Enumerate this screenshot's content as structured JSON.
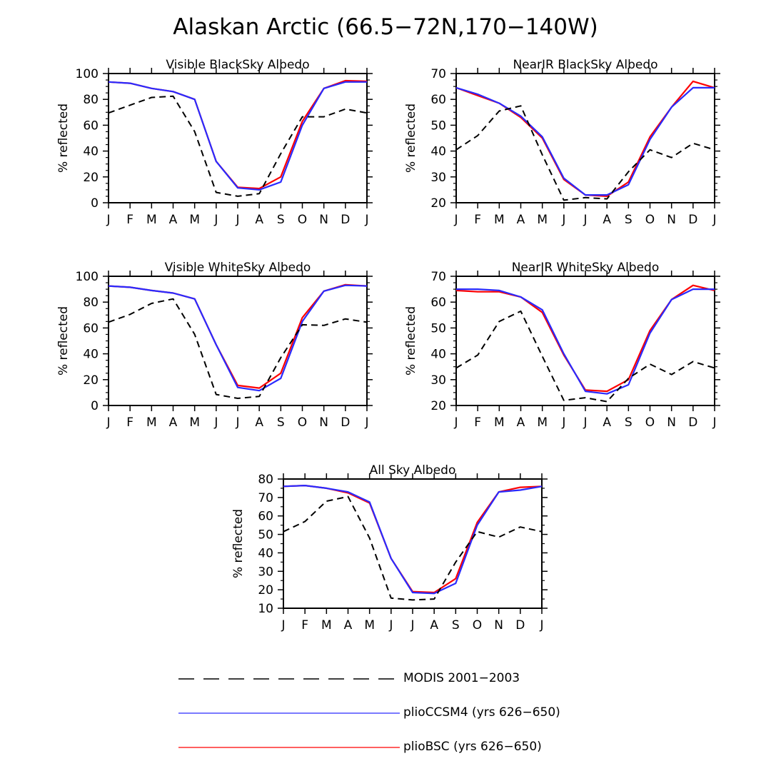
{
  "title": "Alaskan Arctic (66.5−72N,170−140W)",
  "colors": {
    "modis": "#000000",
    "ccsm4": "#2a2aff",
    "bsc": "#ff0000"
  },
  "legend": {
    "modis": "MODIS 2001−2003",
    "ccsm4": "plioCCSM4 (yrs 626−650)",
    "bsc": "plioBSC (yrs 626−650)"
  },
  "chart_data": [
    {
      "type": "line",
      "title": "Visible BlackSky Albedo",
      "ylabel": "% reflected",
      "xlabel": "",
      "categories": [
        "J",
        "F",
        "M",
        "A",
        "M",
        "J",
        "J",
        "A",
        "S",
        "O",
        "N",
        "D",
        "J"
      ],
      "ylim": [
        0,
        100
      ],
      "yticks": [
        0,
        20,
        40,
        60,
        80,
        100
      ],
      "series": [
        {
          "name": "MODIS 2001−2003",
          "key": "modis",
          "values": [
            69.5,
            75.5,
            81.5,
            82.5,
            55,
            8,
            5,
            7,
            38,
            66.5,
            66.5,
            72.5,
            69.5
          ]
        },
        {
          "name": "plioCCSM4 (yrs 626−650)",
          "key": "ccsm4",
          "values": [
            93.5,
            92.5,
            88.5,
            86,
            80,
            32,
            11.5,
            10,
            16,
            60,
            88.5,
            93.5,
            93.5
          ]
        },
        {
          "name": "plioBSC (yrs 626−650)",
          "key": "bsc",
          "values": [
            93.5,
            92.5,
            88.5,
            86,
            80,
            32,
            12,
            11,
            20,
            63,
            88.5,
            94.5,
            94
          ]
        }
      ]
    },
    {
      "type": "line",
      "title": "NearIR BlackSky Albedo",
      "ylabel": "% reflected",
      "xlabel": "",
      "categories": [
        "J",
        "F",
        "M",
        "A",
        "M",
        "J",
        "J",
        "A",
        "S",
        "O",
        "N",
        "D",
        "J"
      ],
      "ylim": [
        20,
        70
      ],
      "yticks": [
        20,
        30,
        40,
        50,
        60,
        70
      ],
      "series": [
        {
          "name": "MODIS 2001−2003",
          "key": "modis",
          "values": [
            40.5,
            46,
            55.5,
            57.5,
            38.5,
            21,
            22,
            21.5,
            32,
            40.5,
            37.5,
            43,
            40.5
          ]
        },
        {
          "name": "plioCCSM4 (yrs 626−650)",
          "key": "ccsm4",
          "values": [
            64.5,
            62,
            58.5,
            53.5,
            45.5,
            29.5,
            23,
            23,
            27,
            44.5,
            57,
            64.5,
            64.5
          ]
        },
        {
          "name": "plioBSC (yrs 626−650)",
          "key": "bsc",
          "values": [
            64.5,
            61.5,
            58.5,
            53,
            45,
            29,
            23,
            22.5,
            28,
            45.5,
            57,
            67,
            64.5
          ]
        }
      ]
    },
    {
      "type": "line",
      "title": "Visible WhiteSky Albedo",
      "ylabel": "% reflected",
      "xlabel": "",
      "categories": [
        "J",
        "F",
        "M",
        "A",
        "M",
        "J",
        "J",
        "A",
        "S",
        "O",
        "N",
        "D",
        "J"
      ],
      "ylim": [
        0,
        100
      ],
      "yticks": [
        0,
        20,
        40,
        60,
        80,
        100
      ],
      "series": [
        {
          "name": "MODIS 2001−2003",
          "key": "modis",
          "values": [
            64.5,
            70.5,
            79,
            82.5,
            55,
            8.5,
            5.5,
            7,
            37,
            62.5,
            62,
            67,
            64.5
          ]
        },
        {
          "name": "plioCCSM4 (yrs 626−650)",
          "key": "ccsm4",
          "values": [
            92.5,
            91.5,
            89,
            87,
            82.5,
            47,
            14,
            11.5,
            21,
            65,
            88.5,
            93,
            92.5
          ]
        },
        {
          "name": "plioBSC (yrs 626−650)",
          "key": "bsc",
          "values": [
            92.5,
            91.5,
            89,
            87,
            82.5,
            47,
            15.5,
            13.5,
            25,
            68,
            88.5,
            93.5,
            92.5
          ]
        }
      ]
    },
    {
      "type": "line",
      "title": "NearIR WhiteSky Albedo",
      "ylabel": "% reflected",
      "xlabel": "",
      "categories": [
        "J",
        "F",
        "M",
        "A",
        "M",
        "J",
        "J",
        "A",
        "S",
        "O",
        "N",
        "D",
        "J"
      ],
      "ylim": [
        20,
        70
      ],
      "yticks": [
        20,
        30,
        40,
        50,
        60,
        70
      ],
      "series": [
        {
          "name": "MODIS 2001−2003",
          "key": "modis",
          "values": [
            34.5,
            39.5,
            52.5,
            56.5,
            39,
            22,
            23,
            21.5,
            30.5,
            36,
            32,
            37,
            34.5
          ]
        },
        {
          "name": "plioCCSM4 (yrs 626−650)",
          "key": "ccsm4",
          "values": [
            65,
            65,
            64.5,
            62,
            57,
            40,
            25.5,
            24.5,
            28,
            48,
            61,
            65,
            65
          ]
        },
        {
          "name": "plioBSC (yrs 626−650)",
          "key": "bsc",
          "values": [
            64.5,
            64,
            64,
            62,
            56,
            39.5,
            26,
            25.5,
            30,
            49,
            61,
            66.5,
            64.5
          ]
        }
      ]
    },
    {
      "type": "line",
      "title": "All Sky Albedo",
      "ylabel": "% reflected",
      "xlabel": "",
      "categories": [
        "J",
        "F",
        "M",
        "A",
        "M",
        "J",
        "J",
        "A",
        "S",
        "O",
        "N",
        "D",
        "J"
      ],
      "ylim": [
        10,
        80
      ],
      "yticks": [
        10,
        20,
        30,
        40,
        50,
        60,
        70,
        80
      ],
      "series": [
        {
          "name": "MODIS 2001−2003",
          "key": "modis",
          "values": [
            51.5,
            57,
            68,
            70.5,
            48,
            15.5,
            14.5,
            15,
            35,
            51.5,
            48.5,
            54,
            51.5
          ]
        },
        {
          "name": "plioCCSM4 (yrs 626−650)",
          "key": "ccsm4",
          "values": [
            76,
            76.5,
            75,
            73,
            67.5,
            37,
            18.5,
            18,
            23.5,
            55,
            73,
            74,
            76
          ]
        },
        {
          "name": "plioBSC (yrs 626−650)",
          "key": "bsc",
          "values": [
            76,
            76.5,
            75,
            72.5,
            67,
            37,
            19,
            18.5,
            26,
            56.5,
            73,
            75.5,
            76
          ]
        }
      ]
    }
  ]
}
